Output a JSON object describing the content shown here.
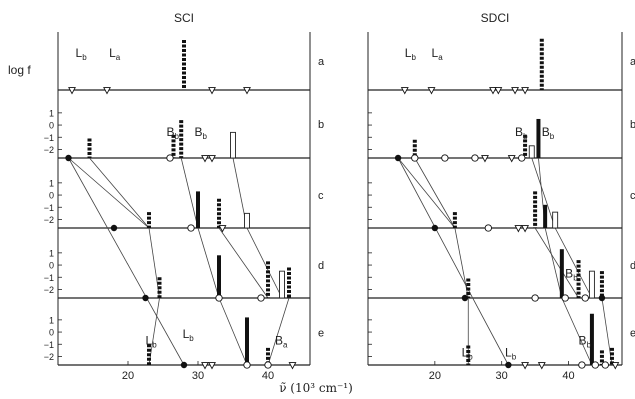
{
  "chart_data": {
    "type": "scatter",
    "ylabel": "log f",
    "xlabel": "ν̃ (10³ cm⁻¹)",
    "xticks": [
      20,
      30,
      40
    ],
    "yticks": [
      1,
      0,
      -1,
      -2
    ],
    "rows": [
      "a",
      "b",
      "c",
      "d",
      "e"
    ],
    "panels": [
      {
        "title": "SCI",
        "xlim": [
          10,
          46
        ],
        "labels": [
          {
            "row": "a",
            "text": "Lb",
            "x": 12.5,
            "y": 0.0
          },
          {
            "row": "a",
            "text": "La",
            "x": 17.3,
            "y": 0.0
          },
          {
            "row": "b",
            "text": "Bb",
            "x": 25.5,
            "y": -0.9
          },
          {
            "row": "b",
            "text": "Bb",
            "x": 29.5,
            "y": -0.9
          },
          {
            "row": "e",
            "text": "Lb",
            "x": 22.5,
            "y": -1.0
          },
          {
            "row": "e",
            "text": "Lb",
            "x": 27.8,
            "y": -0.5
          },
          {
            "row": "e",
            "text": "Ba",
            "x": 41.0,
            "y": -1.0
          }
        ],
        "bars": [
          {
            "row": "a",
            "x": 28.0,
            "top": 1.4,
            "style": "dashed"
          },
          {
            "row": "b",
            "x": 14.5,
            "top": -1.1,
            "style": "dashed"
          },
          {
            "row": "b",
            "x": 26.5,
            "top": -0.8,
            "style": "dashed"
          },
          {
            "row": "b",
            "x": 27.6,
            "top": 0.4,
            "style": "dashed"
          },
          {
            "row": "b",
            "x": 35.0,
            "top": -0.6,
            "style": "open"
          },
          {
            "row": "c",
            "x": 23.0,
            "top": -1.4,
            "style": "dashed"
          },
          {
            "row": "c",
            "x": 30.0,
            "top": 0.3,
            "style": "solid"
          },
          {
            "row": "c",
            "x": 33.0,
            "top": -0.3,
            "style": "dashed"
          },
          {
            "row": "c",
            "x": 37.0,
            "top": -1.5,
            "style": "open"
          },
          {
            "row": "d",
            "x": 24.5,
            "top": -1.0,
            "style": "dashed"
          },
          {
            "row": "d",
            "x": 33.0,
            "top": 0.8,
            "style": "solid"
          },
          {
            "row": "d",
            "x": 40.0,
            "top": 0.3,
            "style": "dashed"
          },
          {
            "row": "d",
            "x": 42.0,
            "top": -0.5,
            "style": "open"
          },
          {
            "row": "d",
            "x": 43.0,
            "top": -0.2,
            "style": "dashed"
          },
          {
            "row": "e",
            "x": 23.0,
            "top": -1.0,
            "style": "dashed"
          },
          {
            "row": "e",
            "x": 37.0,
            "top": 1.2,
            "style": "solid"
          },
          {
            "row": "e",
            "x": 40.0,
            "top": -1.3,
            "style": "dashed"
          }
        ],
        "markers": [
          {
            "row": "a",
            "x": 12.0,
            "type": "triangle"
          },
          {
            "row": "a",
            "x": 17.0,
            "type": "triangle"
          },
          {
            "row": "a",
            "x": 32.0,
            "type": "triangle"
          },
          {
            "row": "a",
            "x": 37.0,
            "type": "triangle"
          },
          {
            "row": "b",
            "x": 11.5,
            "type": "filled"
          },
          {
            "row": "b",
            "x": 26.0,
            "type": "open"
          },
          {
            "row": "b",
            "x": 31.0,
            "type": "triangle"
          },
          {
            "row": "b",
            "x": 32.0,
            "type": "triangle"
          },
          {
            "row": "c",
            "x": 18.0,
            "type": "filled"
          },
          {
            "row": "c",
            "x": 29.0,
            "type": "open"
          },
          {
            "row": "c",
            "x": 33.5,
            "type": "triangle"
          },
          {
            "row": "d",
            "x": 22.5,
            "type": "filled"
          },
          {
            "row": "d",
            "x": 33.0,
            "type": "open"
          },
          {
            "row": "d",
            "x": 39.0,
            "type": "open"
          },
          {
            "row": "e",
            "x": 28.0,
            "type": "filled"
          },
          {
            "row": "e",
            "x": 31.0,
            "type": "triangle"
          },
          {
            "row": "e",
            "x": 32.0,
            "type": "triangle"
          },
          {
            "row": "e",
            "x": 37.0,
            "type": "open"
          },
          {
            "row": "e",
            "x": 40.0,
            "type": "open"
          },
          {
            "row": "e",
            "x": 43.5,
            "type": "triangle"
          }
        ],
        "links": [
          [
            {
              "row": "b",
              "x": 11.5
            },
            {
              "row": "e",
              "x": 28.0
            }
          ],
          [
            {
              "row": "b",
              "x": 11.5
            },
            {
              "row": "c",
              "x": 23.0
            }
          ],
          [
            {
              "row": "b",
              "x": 14.5
            },
            {
              "row": "c",
              "x": 23.0
            }
          ],
          [
            {
              "row": "c",
              "x": 23.0
            },
            {
              "row": "d",
              "x": 24.5
            }
          ],
          [
            {
              "row": "d",
              "x": 24.5
            },
            {
              "row": "e",
              "x": 23.0
            }
          ],
          [
            {
              "row": "b",
              "x": 27.6
            },
            {
              "row": "c",
              "x": 30.0
            }
          ],
          [
            {
              "row": "c",
              "x": 30.0
            },
            {
              "row": "d",
              "x": 33.0
            }
          ],
          [
            {
              "row": "d",
              "x": 33.0
            },
            {
              "row": "e",
              "x": 37.0
            }
          ],
          [
            {
              "row": "b",
              "x": 35.0
            },
            {
              "row": "c",
              "x": 37.0
            }
          ],
          [
            {
              "row": "c",
              "x": 37.0
            },
            {
              "row": "d",
              "x": 42.0
            }
          ],
          [
            {
              "row": "c",
              "x": 33.0
            },
            {
              "row": "d",
              "x": 40.0
            }
          ],
          [
            {
              "row": "d",
              "x": 43.0
            },
            {
              "row": "e",
              "x": 40.0
            }
          ]
        ]
      },
      {
        "title": "SDCI",
        "xlim": [
          10,
          48
        ],
        "labels": [
          {
            "row": "a",
            "text": "Lb",
            "x": 15.5,
            "y": 0.0
          },
          {
            "row": "a",
            "text": "La",
            "x": 19.5,
            "y": 0.0
          },
          {
            "row": "b",
            "text": "Bb",
            "x": 32.0,
            "y": -0.9
          },
          {
            "row": "b",
            "text": "Bb",
            "x": 36.0,
            "y": -0.9
          },
          {
            "row": "d",
            "text": "Bb",
            "x": 39.5,
            "y": -1.0
          },
          {
            "row": "e",
            "text": "Lb",
            "x": 24.0,
            "y": -2.0
          },
          {
            "row": "e",
            "text": "Lb",
            "x": 30.5,
            "y": -2.0
          },
          {
            "row": "e",
            "text": "Bb",
            "x": 41.5,
            "y": -1.0
          }
        ],
        "bars": [
          {
            "row": "a",
            "x": 36.0,
            "top": 1.5,
            "style": "dashed"
          },
          {
            "row": "b",
            "x": 17.0,
            "top": -1.2,
            "style": "dashed"
          },
          {
            "row": "b",
            "x": 33.5,
            "top": -0.8,
            "style": "dashed"
          },
          {
            "row": "b",
            "x": 34.5,
            "top": -1.7,
            "style": "open"
          },
          {
            "row": "b",
            "x": 35.5,
            "top": 0.5,
            "style": "solid"
          },
          {
            "row": "c",
            "x": 23.0,
            "top": -1.4,
            "style": "dashed"
          },
          {
            "row": "c",
            "x": 35.0,
            "top": 0.3,
            "style": "dashed"
          },
          {
            "row": "c",
            "x": 36.5,
            "top": -0.8,
            "style": "solid"
          },
          {
            "row": "c",
            "x": 38.0,
            "top": -1.4,
            "style": "open"
          },
          {
            "row": "d",
            "x": 25.0,
            "top": -1.1,
            "style": "dashed"
          },
          {
            "row": "d",
            "x": 39.0,
            "top": 1.3,
            "style": "solid"
          },
          {
            "row": "d",
            "x": 41.5,
            "top": 0.4,
            "style": "dashed"
          },
          {
            "row": "d",
            "x": 43.5,
            "top": -0.5,
            "style": "open"
          },
          {
            "row": "d",
            "x": 45.0,
            "top": -0.5,
            "style": "dashed"
          },
          {
            "row": "e",
            "x": 25.0,
            "top": -1.1,
            "style": "dashed"
          },
          {
            "row": "e",
            "x": 43.5,
            "top": 1.5,
            "style": "solid"
          },
          {
            "row": "e",
            "x": 45.0,
            "top": -1.5,
            "style": "dashed"
          },
          {
            "row": "e",
            "x": 46.5,
            "top": -1.3,
            "style": "dashed"
          }
        ],
        "markers": [
          {
            "row": "a",
            "x": 15.5,
            "type": "triangle"
          },
          {
            "row": "a",
            "x": 19.5,
            "type": "triangle"
          },
          {
            "row": "a",
            "x": 28.7,
            "type": "triangle"
          },
          {
            "row": "a",
            "x": 29.5,
            "type": "triangle"
          },
          {
            "row": "a",
            "x": 32.0,
            "type": "triangle"
          },
          {
            "row": "a",
            "x": 33.5,
            "type": "triangle"
          },
          {
            "row": "b",
            "x": 14.5,
            "type": "filled"
          },
          {
            "row": "b",
            "x": 17.0,
            "type": "open"
          },
          {
            "row": "b",
            "x": 21.5,
            "type": "open"
          },
          {
            "row": "b",
            "x": 26.0,
            "type": "open"
          },
          {
            "row": "b",
            "x": 27.5,
            "type": "triangle"
          },
          {
            "row": "b",
            "x": 31.5,
            "type": "triangle"
          },
          {
            "row": "b",
            "x": 33.0,
            "type": "open"
          },
          {
            "row": "c",
            "x": 20.0,
            "type": "filled"
          },
          {
            "row": "c",
            "x": 28.0,
            "type": "open"
          },
          {
            "row": "c",
            "x": 32.5,
            "type": "triangle"
          },
          {
            "row": "c",
            "x": 33.5,
            "type": "triangle"
          },
          {
            "row": "d",
            "x": 24.5,
            "type": "filled"
          },
          {
            "row": "d",
            "x": 35.0,
            "type": "open"
          },
          {
            "row": "d",
            "x": 39.5,
            "type": "open"
          },
          {
            "row": "d",
            "x": 42.5,
            "type": "open"
          },
          {
            "row": "d",
            "x": 45.0,
            "type": "filled"
          },
          {
            "row": "e",
            "x": 31.0,
            "type": "filled"
          },
          {
            "row": "e",
            "x": 33.5,
            "type": "triangle"
          },
          {
            "row": "e",
            "x": 36.0,
            "type": "triangle"
          },
          {
            "row": "e",
            "x": 42.0,
            "type": "open"
          },
          {
            "row": "e",
            "x": 44.0,
            "type": "open"
          },
          {
            "row": "e",
            "x": 45.5,
            "type": "open"
          },
          {
            "row": "e",
            "x": 47.0,
            "type": "triangle"
          }
        ],
        "links": [
          [
            {
              "row": "b",
              "x": 14.5
            },
            {
              "row": "e",
              "x": 31.0
            }
          ],
          [
            {
              "row": "b",
              "x": 14.5
            },
            {
              "row": "c",
              "x": 23.0
            }
          ],
          [
            {
              "row": "b",
              "x": 17.0
            },
            {
              "row": "c",
              "x": 23.0
            }
          ],
          [
            {
              "row": "c",
              "x": 23.0
            },
            {
              "row": "d",
              "x": 25.0
            }
          ],
          [
            {
              "row": "d",
              "x": 25.0
            },
            {
              "row": "e",
              "x": 25.0
            }
          ],
          [
            {
              "row": "b",
              "x": 35.5
            },
            {
              "row": "c",
              "x": 36.5
            }
          ],
          [
            {
              "row": "c",
              "x": 36.5
            },
            {
              "row": "d",
              "x": 39.0
            }
          ],
          [
            {
              "row": "d",
              "x": 39.0
            },
            {
              "row": "e",
              "x": 43.5
            }
          ],
          [
            {
              "row": "b",
              "x": 34.5
            },
            {
              "row": "c",
              "x": 38.0
            }
          ],
          [
            {
              "row": "c",
              "x": 38.0
            },
            {
              "row": "d",
              "x": 43.5
            }
          ],
          [
            {
              "row": "c",
              "x": 35.0
            },
            {
              "row": "d",
              "x": 41.5
            }
          ],
          [
            {
              "row": "d",
              "x": 45.0
            },
            {
              "row": "e",
              "x": 46.5
            }
          ]
        ]
      }
    ]
  }
}
